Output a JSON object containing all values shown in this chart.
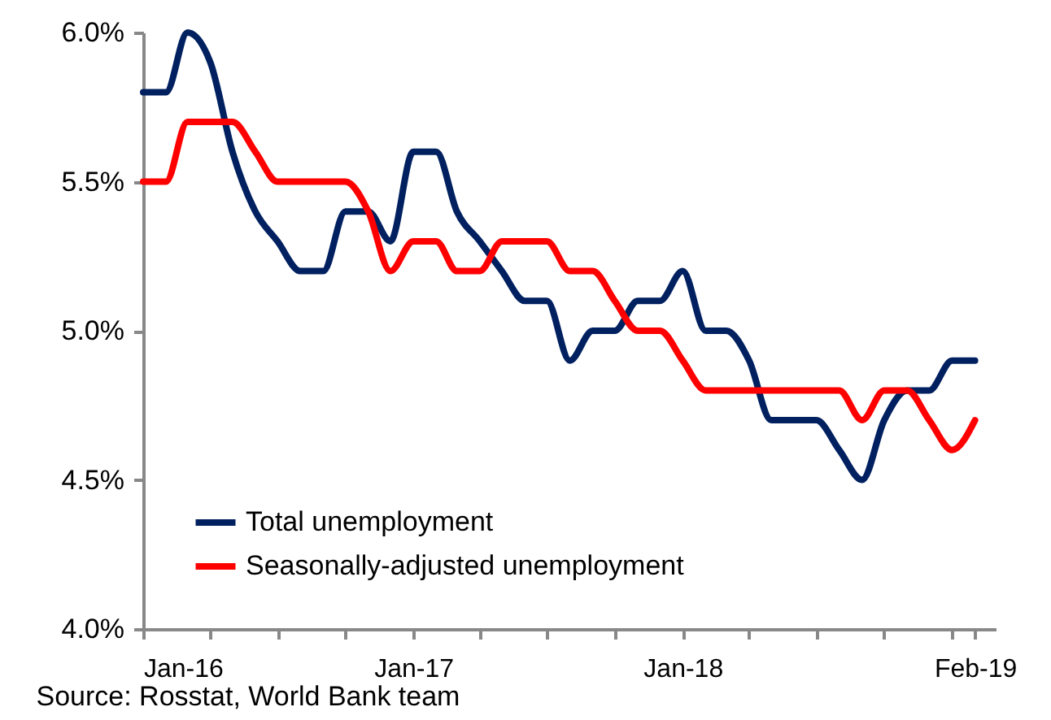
{
  "chart_data": {
    "type": "line",
    "x": [
      "2016-01",
      "2016-02",
      "2016-03",
      "2016-04",
      "2016-05",
      "2016-06",
      "2016-07",
      "2016-08",
      "2016-09",
      "2016-10",
      "2016-11",
      "2016-12",
      "2017-01",
      "2017-02",
      "2017-03",
      "2017-04",
      "2017-05",
      "2017-06",
      "2017-07",
      "2017-08",
      "2017-09",
      "2017-10",
      "2017-11",
      "2017-12",
      "2018-01",
      "2018-02",
      "2018-03",
      "2018-04",
      "2018-05",
      "2018-06",
      "2018-07",
      "2018-08",
      "2018-09",
      "2018-10",
      "2018-11",
      "2018-12",
      "2019-01",
      "2019-02"
    ],
    "series": [
      {
        "name": "Total unemployment",
        "color": "#002060",
        "values": [
          5.8,
          5.8,
          6.0,
          5.9,
          5.6,
          5.4,
          5.3,
          5.2,
          5.2,
          5.4,
          5.4,
          5.3,
          5.6,
          5.6,
          5.4,
          5.3,
          5.2,
          5.1,
          5.1,
          4.9,
          5.0,
          5.0,
          5.1,
          5.1,
          5.2,
          5.0,
          5.0,
          4.9,
          4.7,
          4.7,
          4.7,
          4.6,
          4.5,
          4.7,
          4.8,
          4.8,
          4.9,
          4.9
        ]
      },
      {
        "name": "Seasonally-adjusted unemployment",
        "color": "#ff0000",
        "values": [
          5.5,
          5.5,
          5.7,
          5.7,
          5.7,
          5.6,
          5.5,
          5.5,
          5.5,
          5.5,
          5.4,
          5.2,
          5.3,
          5.3,
          5.2,
          5.2,
          5.3,
          5.3,
          5.3,
          5.2,
          5.2,
          5.1,
          5.0,
          5.0,
          4.9,
          4.8,
          4.8,
          4.8,
          4.8,
          4.8,
          4.8,
          4.8,
          4.7,
          4.8,
          4.8,
          4.7,
          4.6,
          4.7
        ]
      }
    ],
    "xlim": [
      "2016-01",
      "2019-03"
    ],
    "xticks": [
      {
        "value": "2016-01",
        "label": "Jan-16"
      },
      {
        "value": "2016-04",
        "label": null
      },
      {
        "value": "2016-07",
        "label": null
      },
      {
        "value": "2016-10",
        "label": null
      },
      {
        "value": "2017-01",
        "label": "Jan-17"
      },
      {
        "value": "2017-04",
        "label": null
      },
      {
        "value": "2017-07",
        "label": null
      },
      {
        "value": "2017-10",
        "label": null
      },
      {
        "value": "2018-01",
        "label": "Jan-18"
      },
      {
        "value": "2018-04",
        "label": null
      },
      {
        "value": "2018-07",
        "label": null
      },
      {
        "value": "2018-10",
        "label": null
      },
      {
        "value": "2019-01",
        "label": null
      },
      {
        "value": "2019-02",
        "label": "Feb-19"
      }
    ],
    "ylim": [
      4.0,
      6.0
    ],
    "yticks": [
      {
        "value": 4.0,
        "label": "4.0%"
      },
      {
        "value": 4.5,
        "label": "4.5%"
      },
      {
        "value": 5.0,
        "label": "5.0%"
      },
      {
        "value": 5.5,
        "label": "5.5%"
      },
      {
        "value": 6.0,
        "label": "6.0%"
      }
    ],
    "grid": false,
    "legend": "bottom left",
    "marker": "none",
    "line_style": "solid",
    "annotations": [
      "Source: Rosstat, World Bank team"
    ]
  }
}
